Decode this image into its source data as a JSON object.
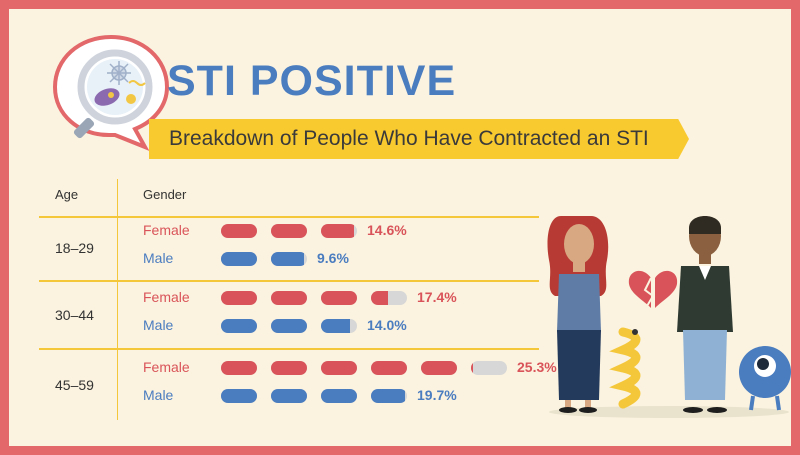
{
  "header": {
    "title": "STI POSITIVE",
    "subtitle": "Breakdown of People Who Have Contracted an STI"
  },
  "table": {
    "col_age": "Age",
    "col_gender": "Gender"
  },
  "colors": {
    "female": "#d9545a",
    "male": "#4a7cc0",
    "pill_empty": "#d7d7d7",
    "accent": "#f9c930",
    "frame": "#e2686a"
  },
  "chart_data": {
    "type": "bar",
    "categories": [
      "18–29",
      "30–44",
      "45–59"
    ],
    "series": [
      {
        "name": "Female",
        "values": [
          14.6,
          17.4,
          25.3
        ],
        "labels": [
          "14.6%",
          "17.4%",
          "25.3%"
        ]
      },
      {
        "name": "Male",
        "values": [
          9.6,
          14.0,
          19.7
        ],
        "labels": [
          "9.6%",
          "14.0%",
          "19.7%"
        ]
      }
    ],
    "title": "STI POSITIVE",
    "subtitle": "Breakdown of People Who Have Contracted an STI",
    "unit_per_pill_percent": 5,
    "xlabel": "Age",
    "ylabel": "Gender"
  }
}
